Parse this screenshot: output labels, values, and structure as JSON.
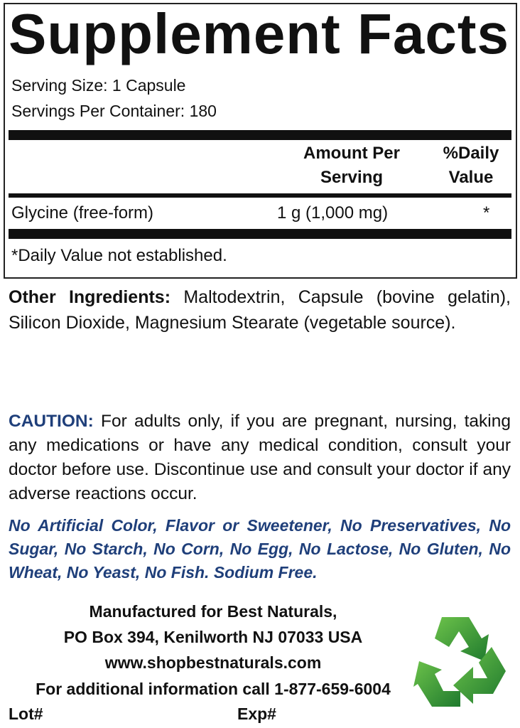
{
  "facts": {
    "title": "Supplement Facts",
    "serving_size": "Serving Size: 1 Capsule",
    "servings_per_container": "Servings Per Container: 180",
    "col_amount_line1": "Amount Per",
    "col_amount_line2": "Serving",
    "col_dv_line1": "%Daily",
    "col_dv_line2": "Value",
    "rows": [
      {
        "name": "Glycine (free-form)",
        "amount": "1 g (1,000 mg)",
        "dv": "*"
      }
    ],
    "footnote": "*Daily Value not established."
  },
  "other_ingredients": {
    "label": "Other Ingredients:",
    "text": " Maltodextrin, Capsule (bovine gelatin), Silicon Dioxide, Magnesium Stearate (vegetable source)."
  },
  "caution": {
    "label": "CAUTION:",
    "text": " For adults only, if you are pregnant, nursing, taking any medications or have any medical condition, consult your doctor before use. Discontinue use and consult your doctor if any adverse reactions occur."
  },
  "claims": "No Artificial Color, Flavor or Sweetener, No Preservatives, No Sugar, No Starch, No Corn, No Egg, No Lactose, No Gluten, No Wheat, No Yeast, No Fish. Sodium Free.",
  "manufacturer": {
    "line1": "Manufactured for Best Naturals,",
    "line2": "PO Box 394, Kenilworth NJ 07033 USA",
    "website": "www.shopbestnaturals.com",
    "phone_line": "For additional information call 1-877-659-6004",
    "lot_label": "Lot#",
    "exp_label": "Exp#"
  },
  "icons": {
    "recycle": "recycle-icon"
  },
  "colors": {
    "accent_blue": "#1f3f7a",
    "recycle_green": "#3a9a3a",
    "text": "#111111"
  }
}
